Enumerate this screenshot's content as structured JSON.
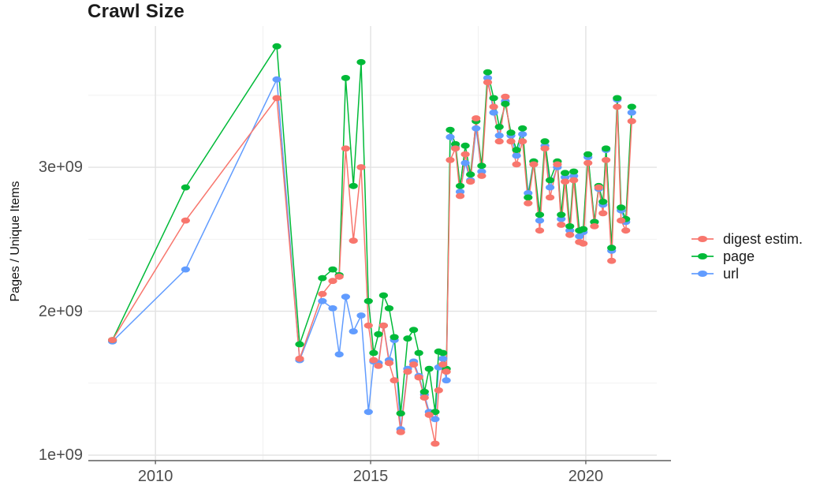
{
  "chart_data": {
    "type": "line",
    "title": "Crawl Size",
    "xlabel": "",
    "ylabel": "Pages / Unique Items",
    "legend_position": "right",
    "grid": true,
    "x_unit": "year",
    "xlim": [
      2008.44,
      2021.65
    ],
    "ylim_billions": [
      0.962,
      3.981
    ],
    "x_ticks": [
      2010,
      2015,
      2020
    ],
    "x_tick_labels": [
      "2010",
      "2015",
      "2020"
    ],
    "x_minor_gridlines": [
      2012.5,
      2017.5
    ],
    "y_ticks": [
      1,
      2,
      3
    ],
    "y_tick_labels": [
      "1e+09",
      "2e+09",
      "3e+09"
    ],
    "y_minor_gridlines": [
      1.5,
      2.5,
      3.5
    ],
    "x": [
      2009.0,
      2010.7,
      2012.82,
      2013.35,
      2013.88,
      2014.12,
      2014.27,
      2014.42,
      2014.6,
      2014.78,
      2014.95,
      2015.07,
      2015.18,
      2015.3,
      2015.43,
      2015.55,
      2015.7,
      2015.86,
      2016.0,
      2016.12,
      2016.25,
      2016.36,
      2016.5,
      2016.58,
      2016.68,
      2016.76,
      2016.85,
      2016.97,
      2017.08,
      2017.2,
      2017.32,
      2017.45,
      2017.58,
      2017.72,
      2017.86,
      2017.99,
      2018.13,
      2018.26,
      2018.39,
      2018.53,
      2018.66,
      2018.79,
      2018.93,
      2019.05,
      2019.17,
      2019.34,
      2019.43,
      2019.52,
      2019.63,
      2019.72,
      2019.85,
      2019.94,
      2020.05,
      2020.2,
      2020.3,
      2020.4,
      2020.47,
      2020.6,
      2020.73,
      2020.82,
      2020.93,
      2021.07
    ],
    "series": [
      {
        "name": "digest estim.",
        "color": "#F8766D",
        "values_in_billions": [
          1.8,
          2.63,
          3.48,
          1.67,
          2.12,
          2.21,
          2.24,
          3.13,
          2.49,
          3.0,
          1.9,
          1.66,
          1.62,
          1.9,
          1.64,
          1.52,
          1.16,
          1.58,
          1.63,
          1.54,
          1.4,
          1.28,
          1.08,
          1.45,
          1.63,
          1.58,
          3.05,
          3.13,
          2.8,
          3.09,
          2.9,
          3.34,
          2.94,
          3.59,
          3.42,
          3.18,
          3.49,
          3.18,
          3.02,
          3.18,
          2.75,
          3.02,
          2.56,
          3.13,
          2.79,
          3.02,
          2.6,
          2.9,
          2.53,
          2.91,
          2.48,
          2.47,
          3.03,
          2.59,
          2.86,
          2.68,
          3.05,
          2.35,
          3.42,
          2.63,
          2.56,
          3.32
        ]
      },
      {
        "name": "page",
        "color": "#00BA38",
        "values_in_billions": [
          1.8,
          2.86,
          3.84,
          1.77,
          2.23,
          2.29,
          2.25,
          3.62,
          2.87,
          3.73,
          2.07,
          1.71,
          1.84,
          2.11,
          2.02,
          1.82,
          1.29,
          1.81,
          1.87,
          1.71,
          1.44,
          1.6,
          1.3,
          1.72,
          1.71,
          1.6,
          3.26,
          3.16,
          2.87,
          3.15,
          2.95,
          3.32,
          3.01,
          3.66,
          3.48,
          3.28,
          3.44,
          3.24,
          3.12,
          3.27,
          2.79,
          3.04,
          2.67,
          3.18,
          2.91,
          3.04,
          2.67,
          2.96,
          2.59,
          2.97,
          2.56,
          2.57,
          3.09,
          2.62,
          2.87,
          2.76,
          3.13,
          2.44,
          3.48,
          2.72,
          2.64,
          3.42
        ]
      },
      {
        "name": "url",
        "color": "#619CFF",
        "values_in_billions": [
          1.79,
          2.29,
          3.61,
          1.66,
          2.07,
          2.02,
          1.7,
          2.1,
          1.86,
          1.97,
          1.3,
          1.65,
          1.64,
          1.9,
          1.66,
          1.8,
          1.18,
          1.6,
          1.65,
          1.55,
          1.42,
          1.3,
          1.25,
          1.61,
          1.67,
          1.52,
          3.21,
          3.14,
          2.83,
          3.03,
          2.91,
          3.27,
          2.97,
          3.62,
          3.38,
          3.22,
          3.46,
          3.22,
          3.08,
          3.23,
          2.82,
          3.04,
          2.63,
          3.15,
          2.86,
          3.0,
          2.64,
          2.93,
          2.56,
          2.94,
          2.52,
          2.55,
          3.07,
          2.62,
          2.85,
          2.74,
          3.12,
          2.42,
          3.47,
          2.7,
          2.62,
          3.38
        ]
      }
    ],
    "colors": {
      "axis_text": "#4d4d4d",
      "title_text": "#1b1b1b",
      "grid_major": "#e2e2e2",
      "grid_minor": "#efefef",
      "axis_line": "#5f5f5f"
    }
  }
}
